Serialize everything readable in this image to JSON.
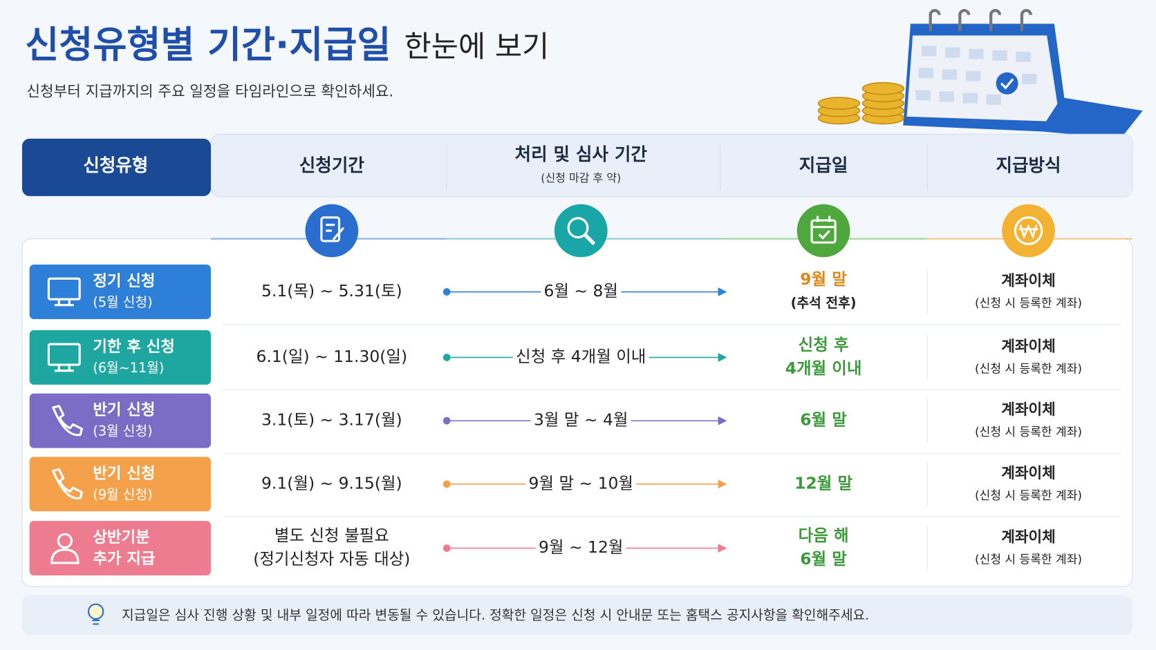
{
  "header": {
    "title": "신청유형별 기간·지급일",
    "title_suffix": "한눈에 보기",
    "subtitle": "신청부터 지급까지의 주요 일정을 타임라인으로 확인하세요."
  },
  "table": {
    "columns": [
      {
        "label": "신청유형"
      },
      {
        "label": "신청기간"
      },
      {
        "label": "처리 및 심사 기간",
        "sublabel": "(신청 마감 후 약)"
      },
      {
        "label": "지급일"
      },
      {
        "label": "지급방식"
      }
    ],
    "rows": [
      {
        "type": [
          "정기 신청",
          "(5월 신청)"
        ],
        "color": "#2e7fd8",
        "period": [
          "5.1(목) ~ 5.31(토)"
        ],
        "processing": "6월 ~ 8월",
        "payout": [
          "9월 말",
          "(추석 전후)"
        ],
        "payout_color": "#d98a1a",
        "method": [
          "계좌이체",
          "(신청 시 등록한 계좌)"
        ]
      },
      {
        "type": [
          "기한 후 신청",
          "(6월~11월)"
        ],
        "color": "#1ea7a0",
        "period": [
          "6.1(일) ~ 11.30(일)"
        ],
        "processing": "신청 후 4개월 이내",
        "payout": [
          "신청 후",
          "4개월 이내"
        ],
        "payout_color": "#3c9a3c",
        "method": [
          "계좌이체",
          "(신청 시 등록한 계좌)"
        ]
      },
      {
        "type": [
          "반기 신청",
          "(3월 신청)"
        ],
        "color": "#7b6cc6",
        "period": [
          "3.1(토) ~ 3.17(월)"
        ],
        "processing": "3월 말 ~ 4월",
        "payout": [
          "6월 말"
        ],
        "payout_color": "#3c9a3c",
        "method": [
          "계좌이체",
          "(신청 시 등록한 계좌)"
        ]
      },
      {
        "type": [
          "반기 신청",
          "(9월 신청)"
        ],
        "color": "#f5a14c",
        "period": [
          "9.1(월) ~ 9.15(월)"
        ],
        "processing": "9월 말 ~ 10월",
        "payout": [
          "12월 말"
        ],
        "payout_color": "#3c9a3c",
        "method": [
          "계좌이체",
          "(신청 시 등록한 계좌)"
        ]
      },
      {
        "type": [
          "상반기분",
          "추가 지급"
        ],
        "color": "#ee7c90",
        "period": [
          "별도 신청 불필요",
          "(정기신청자 자동 대상)"
        ],
        "processing": "9월 ~ 12월",
        "payout": [
          "다음 해",
          "6월 말"
        ],
        "payout_color": "#3c9a3c",
        "method": [
          "계좌이체",
          "(신청 시 등록한 계좌)"
        ]
      }
    ]
  },
  "note": "지급일은 심사 진행 상황 및 내부 일정에 따라 변동될 수 있습니다. 정확한 일정은 신청 시 안내문 또는 홈택스 공지사항을 확인해주세요."
}
